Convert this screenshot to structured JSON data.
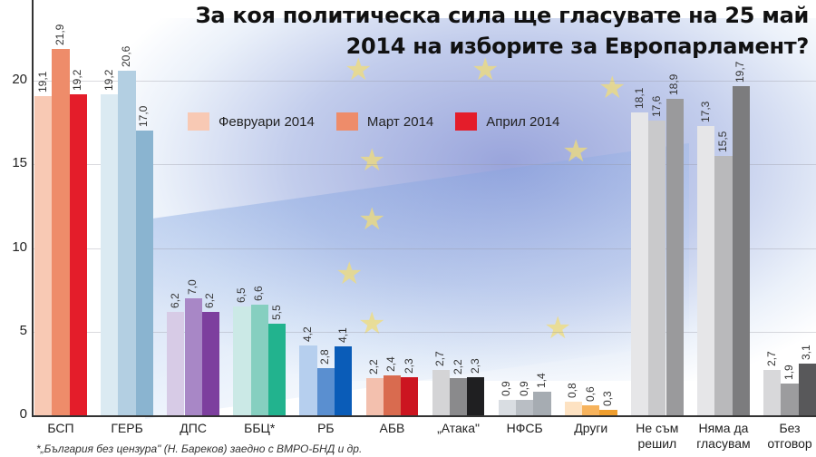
{
  "title": {
    "line1": "За коя политическа сила ще гласувате на 25 май",
    "line2": "2014 на изборите за Европарламент?"
  },
  "legend": [
    {
      "label": "Февруари 2014",
      "color": "#f8c9b4"
    },
    {
      "label": "Март 2014",
      "color": "#ee8c6a"
    },
    {
      "label": "Април 2014",
      "color": "#e41d2a"
    }
  ],
  "footnote": "*„България без цензура\" (Н. Бареков) заедно с ВМРО-БНД и др.",
  "chart_data": {
    "type": "bar",
    "title": "За коя политическа сила ще гласувате на 25 май 2014 на изборите за Европарламент?",
    "xlabel": "",
    "ylabel": "",
    "ylim": [
      0,
      25
    ],
    "yticks": [
      0,
      5,
      10,
      15,
      20,
      25
    ],
    "grid": true,
    "legend_position": "top-center",
    "categories": [
      "БСП",
      "ГЕРБ",
      "ДПС",
      "ББЦ*",
      "РБ",
      "АБВ",
      "„Атака\"",
      "НФСБ",
      "Други",
      "Не съм решил",
      "Няма да гласувам",
      "Без отговор"
    ],
    "series": [
      {
        "name": "Февруари 2014",
        "values": [
          19.1,
          19.2,
          6.2,
          6.5,
          4.2,
          2.2,
          2.7,
          0.9,
          0.8,
          18.1,
          17.3,
          2.7
        ]
      },
      {
        "name": "Март 2014",
        "values": [
          21.9,
          20.6,
          7.0,
          6.6,
          2.8,
          2.4,
          2.2,
          0.9,
          0.6,
          17.6,
          15.5,
          1.9
        ]
      },
      {
        "name": "Април 2014",
        "values": [
          19.2,
          17.0,
          6.2,
          5.5,
          4.1,
          2.3,
          2.3,
          1.4,
          0.3,
          18.9,
          19.7,
          3.1
        ]
      }
    ],
    "value_labels": [
      [
        "19,1",
        "21,9",
        "19,2"
      ],
      [
        "19,2",
        "20,6",
        "17,0"
      ],
      [
        "6,2",
        "7,0",
        "6,2"
      ],
      [
        "6,5",
        "6,6",
        "5,5"
      ],
      [
        "4,2",
        "2,8",
        "4,1"
      ],
      [
        "2,2",
        "2,4",
        "2,3"
      ],
      [
        "2,7",
        "2,2",
        "2,3"
      ],
      [
        "0,9",
        "0,9",
        "1,4"
      ],
      [
        "0,8",
        "0,6",
        "0,3"
      ],
      [
        "18,1",
        "17,6",
        "18,9"
      ],
      [
        "17,3",
        "15,5",
        "19,7"
      ],
      [
        "2,7",
        "1,9",
        "3,1"
      ]
    ],
    "category_colors": [
      [
        "#f8c9b4",
        "#ee8c6a",
        "#e41d2a"
      ],
      [
        "#dbeaf2",
        "#b3cfe2",
        "#8ab4d0"
      ],
      [
        "#d7cbe6",
        "#a887c6",
        "#7d3f9e"
      ],
      [
        "#cbe9e6",
        "#86cfc0",
        "#22b38e"
      ],
      [
        "#b6cfee",
        "#5a8fd0",
        "#0a5cb8"
      ],
      [
        "#f3c0ae",
        "#d96b4f",
        "#cc1520"
      ],
      [
        "#d4d4d6",
        "#8a8a8c",
        "#1f1f21"
      ],
      [
        "#d9dde2",
        "#b9bec4",
        "#a6acb2"
      ],
      [
        "#fde2c2",
        "#f7b35c",
        "#ef9e2e"
      ],
      [
        "#e6e6e8",
        "#c9c9cb",
        "#9a9a9c"
      ],
      [
        "#e6e6e8",
        "#b9b9bb",
        "#7c7c7e"
      ],
      [
        "#d8d8da",
        "#9c9c9e",
        "#58585a"
      ]
    ]
  }
}
